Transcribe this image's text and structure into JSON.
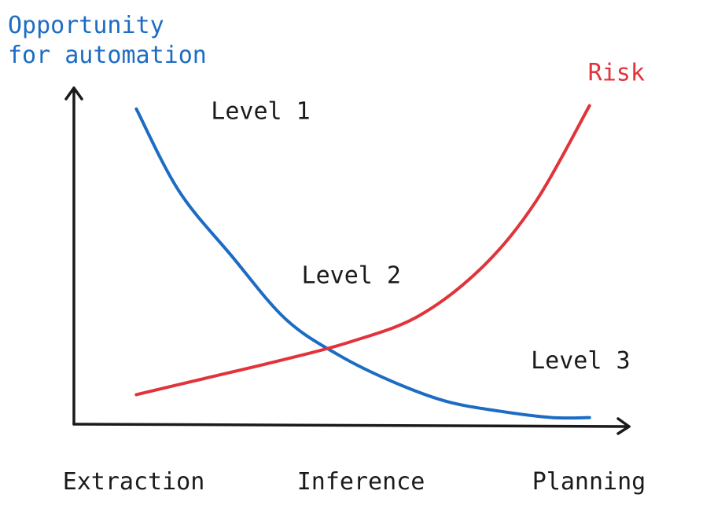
{
  "chart_data": {
    "type": "line",
    "ylabel": [
      "Opportunity",
      "for automation"
    ],
    "xlabel": "",
    "categories": [
      "Extraction",
      "Inference",
      "Planning"
    ],
    "x_range": [
      0,
      10
    ],
    "y_range": [
      0,
      10
    ],
    "grid": false,
    "series": [
      {
        "name": "",
        "color": "#1c6cc4",
        "points": [
          [
            1.2,
            9.6
          ],
          [
            2.0,
            7.1
          ],
          [
            3.0,
            5.1
          ],
          [
            4.0,
            3.2
          ],
          [
            5.0,
            2.1
          ],
          [
            6.0,
            1.3
          ],
          [
            7.0,
            0.7
          ],
          [
            8.0,
            0.4
          ],
          [
            9.0,
            0.2
          ],
          [
            9.7,
            0.2
          ]
        ]
      },
      {
        "name": "Risk",
        "color": "#e0333a",
        "points": [
          [
            1.2,
            0.9
          ],
          [
            2.5,
            1.4
          ],
          [
            3.8,
            1.9
          ],
          [
            5.2,
            2.5
          ],
          [
            6.5,
            3.3
          ],
          [
            7.7,
            4.8
          ],
          [
            8.7,
            6.8
          ],
          [
            9.7,
            9.7
          ]
        ]
      }
    ],
    "annotations": [
      {
        "text": "Level 1",
        "x": 2.6,
        "y": 9.3
      },
      {
        "text": "Level 2",
        "x": 4.3,
        "y": 4.3
      },
      {
        "text": "Level 3",
        "x": 8.6,
        "y": 1.7
      }
    ],
    "colors": {
      "axis": "#1a1a1a",
      "opportunity": "#1c6cc4",
      "risk": "#e0333a"
    }
  }
}
